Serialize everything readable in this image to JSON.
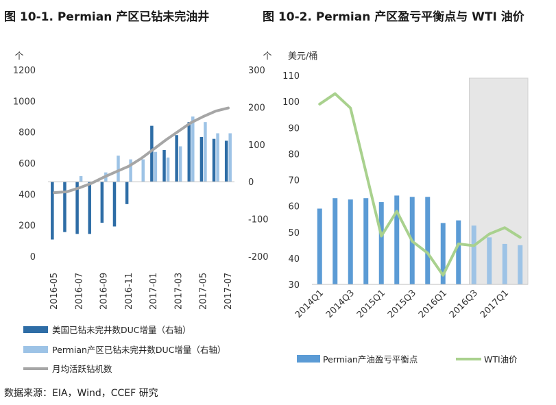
{
  "source": "数据来源：EIA，Wind，CCEF 研究",
  "colors": {
    "us_duc": "#2e6da6",
    "permian_duc": "#9dc3e6",
    "rig_line": "#a6a6a6",
    "breakeven": "#5b9bd5",
    "wti": "#a9d18e",
    "shade": "#e6e6e6"
  },
  "chart_data": [
    {
      "type": "bar",
      "title": "图 10-1. Permian 产区已钻未完油井",
      "y_left_unit": "个",
      "y_right_unit": "个",
      "y_left_lim": [
        0,
        1200
      ],
      "y_left_ticks": [
        0,
        200,
        400,
        600,
        800,
        1000,
        1200
      ],
      "y_right_lim": [
        -200,
        300
      ],
      "y_right_ticks": [
        -200,
        -100,
        0,
        100,
        200,
        300
      ],
      "x_tick_labels": [
        "2016-05",
        "2016-07",
        "2016-09",
        "2016-11",
        "2017-01",
        "2017-03",
        "2017-05",
        "2017-07"
      ],
      "months": [
        "2016-05",
        "2016-06",
        "2016-07",
        "2016-08",
        "2016-09",
        "2016-10",
        "2016-11",
        "2016-12",
        "2017-01",
        "2017-02",
        "2017-03",
        "2017-04",
        "2017-05",
        "2017-06",
        "2017-07"
      ],
      "series": [
        {
          "name": "美国已钻未完井数DUC增量（右轴）",
          "kind": "bar",
          "axis": "right",
          "values": [
            -155,
            -135,
            -140,
            -140,
            -110,
            -120,
            -60,
            0,
            150,
            85,
            125,
            160,
            120,
            115,
            110
          ]
        },
        {
          "name": "Permian产区已钻未完井数DUC增量（右轴）",
          "kind": "bar",
          "axis": "right",
          "values": [
            0,
            0,
            15,
            0,
            25,
            70,
            60,
            60,
            80,
            65,
            95,
            175,
            160,
            130,
            130
          ]
        },
        {
          "name": "月均活跃钻机数",
          "kind": "line",
          "axis": "left",
          "values": [
            410,
            415,
            440,
            470,
            510,
            545,
            580,
            630,
            690,
            750,
            805,
            860,
            900,
            935,
            955
          ]
        }
      ]
    },
    {
      "type": "bar",
      "title": "图 10-2. Permian 产区盈亏平衡点与 WTI 油价",
      "y_left_unit": "美元/桶",
      "y_lim": [
        30,
        110
      ],
      "y_ticks": [
        30,
        40,
        50,
        60,
        70,
        80,
        90,
        100,
        110
      ],
      "quarters": [
        "2014Q1",
        "2014Q2",
        "2014Q3",
        "2014Q4",
        "2015Q1",
        "2015Q2",
        "2015Q3",
        "2015Q4",
        "2016Q1",
        "2016Q2",
        "2016Q3",
        "2016Q4",
        "2017Q1",
        "2017Q2"
      ],
      "x_tick_labels": [
        "2014Q1",
        "2014Q3",
        "2015Q1",
        "2015Q3",
        "2016Q1",
        "2016Q3",
        "2017Q1"
      ],
      "shaded_from": "2016Q3",
      "series": [
        {
          "name": "Permian产油盈亏平衡点",
          "kind": "bar",
          "values": [
            59,
            63,
            62.5,
            63,
            61.5,
            64,
            63.5,
            63.5,
            53.5,
            54.5,
            52.5,
            48,
            45.5,
            45
          ]
        },
        {
          "name": "WTI油价",
          "kind": "line",
          "values": [
            99,
            103,
            97.5,
            73,
            48.5,
            58,
            46.5,
            42,
            33.5,
            45.5,
            44.8,
            49.3,
            51.7,
            48
          ]
        }
      ]
    }
  ]
}
